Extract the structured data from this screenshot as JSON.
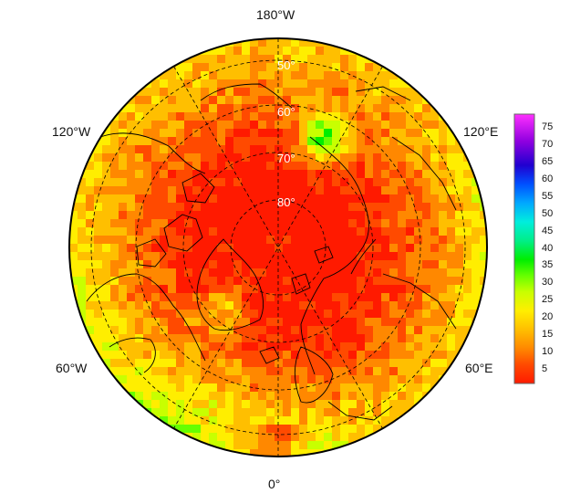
{
  "map": {
    "projection": "north-polar-stereographic",
    "longitude_labels": {
      "top": "180°W",
      "bottom": "0°",
      "upper_left": "120°W",
      "upper_right": "120°E",
      "lower_left": "60°W",
      "lower_right": "60°E"
    },
    "latitude_labels": [
      "50°",
      "60°",
      "70°",
      "80°"
    ]
  },
  "colorbar": {
    "ticks": [
      "5",
      "10",
      "15",
      "20",
      "25",
      "30",
      "35",
      "40",
      "45",
      "50",
      "55",
      "60",
      "65",
      "70",
      "75"
    ],
    "range": [
      1,
      79
    ],
    "colors": [
      "#ff1a00",
      "#ff4a00",
      "#ff8800",
      "#ffbf00",
      "#ffee00",
      "#c8ff00",
      "#66ff00",
      "#00ee00",
      "#00ee88",
      "#00eedd",
      "#00a8ff",
      "#0050ff",
      "#2000d0",
      "#9000e0",
      "#ff30ff"
    ]
  }
}
